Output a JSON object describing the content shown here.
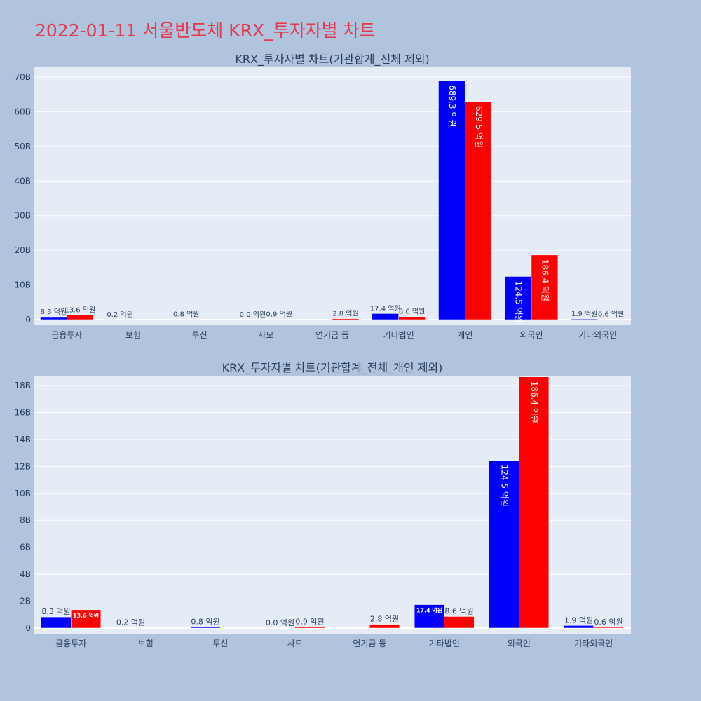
{
  "page": {
    "title": "2022-01-11 서울반도체 KRX_투자자별 차트"
  },
  "colors": {
    "series_1": "#0000ff",
    "series_2": "#ff0000",
    "plot_bg": "#e5ecf6",
    "page_bg": "#b0c4de",
    "title": "#e5394f"
  },
  "chart_data": [
    {
      "type": "bar",
      "title": "KRX_투자자별 차트(기관합계_전체 제외)",
      "categories": [
        "금융투자",
        "보험",
        "투신",
        "사모",
        "연기금 등",
        "기타법인",
        "개인",
        "외국인",
        "기타외국인"
      ],
      "series": [
        {
          "color": "#0000ff",
          "values": [
            830000000,
            20000000,
            80000000,
            0,
            0,
            1740000000,
            68930000000,
            12450000000,
            190000000
          ],
          "labels": [
            "8.3 억원",
            "0.2 억원",
            "0.8 억원",
            "0.0 억원",
            "",
            "17.4 억원",
            "689.3 억원",
            "124.5 억원",
            "1.9 억원"
          ]
        },
        {
          "color": "#ff0000",
          "values": [
            1360000000,
            0,
            0,
            90000000,
            280000000,
            860000000,
            62950000000,
            18640000000,
            60000000
          ],
          "labels": [
            "13.6 억원",
            "",
            "",
            "0.9 억원",
            "2.8 억원",
            "8.6 억원",
            "629.5 억원",
            "186.4 억원",
            "0.6 억원"
          ]
        }
      ],
      "yticks": [
        "0",
        "10B",
        "20B",
        "30B",
        "40B",
        "50B",
        "60B",
        "70B"
      ],
      "ylim": [
        0,
        70000000000
      ],
      "grid": true
    },
    {
      "type": "bar",
      "title": "KRX_투자자별 차트(기관합계_전체_개인 제외)",
      "categories": [
        "금융투자",
        "보험",
        "투신",
        "사모",
        "연기금 등",
        "기타법인",
        "외국인",
        "기타외국인"
      ],
      "series": [
        {
          "color": "#0000ff",
          "values": [
            830000000,
            20000000,
            80000000,
            0,
            0,
            1740000000,
            12450000000,
            190000000
          ],
          "labels": [
            "8.3 억원",
            "0.2 억원",
            "0.8 억원",
            "0.0 억원",
            "",
            "17.4 억원",
            "124.5 억원",
            "1.9 억원"
          ]
        },
        {
          "color": "#ff0000",
          "values": [
            1360000000,
            0,
            0,
            90000000,
            280000000,
            860000000,
            18640000000,
            60000000
          ],
          "labels": [
            "13.6 억원",
            "",
            "",
            "0.9 억원",
            "2.8 억원",
            "8.6 억원",
            "186.4 억원",
            "0.6 억원"
          ]
        }
      ],
      "yticks": [
        "0",
        "2B",
        "4B",
        "6B",
        "8B",
        "10B",
        "12B",
        "14B",
        "16B",
        "18B"
      ],
      "ylim": [
        0,
        18000000000
      ],
      "grid": true
    }
  ]
}
